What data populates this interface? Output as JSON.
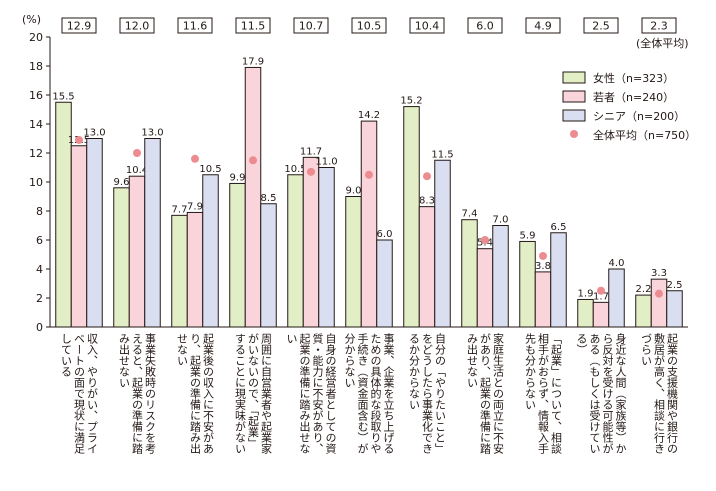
{
  "chart_data": {
    "type": "bar",
    "unit_label": "(%)",
    "avg_note": "(全体平均)",
    "ylim": [
      0,
      20
    ],
    "yticks": [
      "0",
      "2",
      "4",
      "6",
      "8",
      "10",
      "12",
      "14",
      "16",
      "18",
      "20"
    ],
    "categories": [
      "収入、やりがい、プライベートの面で現状に満足している",
      "事業失敗時のリスクを考えると、起業の準備に踏み出せない",
      "起業後の収入に不安があり、起業の準備に踏み出せない",
      "周囲に自営業者や起業家がいないので、「起業」することに現実味がない",
      "自身の経営者としての資質・能力に不安があり、起業の準備に踏み出せない",
      "事業、企業を立ち上げるための具体的な段取りや手続き（資金面含む）が分からない",
      "自分の「やりたいこと」をどうしたら事業化できるか分からない",
      "家庭生活との両立に不安があり、起業の準備に踏み出せない",
      "「起業」について、相談相手がおらず、情報入手先も分からない",
      "身近な人間（家族等）から反対を受ける可能性がある（もしくは受けている）",
      "起業の支援機関や銀行の敷居が高く、相談に行きづらい"
    ],
    "series": [
      {
        "name": "女性（n=323）",
        "color": "#e2efc6",
        "values": [
          15.5,
          9.6,
          7.7,
          9.9,
          10.5,
          9.0,
          15.2,
          7.4,
          5.9,
          1.9,
          2.2
        ],
        "labels": [
          "15.5",
          "9.6",
          "7.7",
          "9.9",
          "10.5",
          "9.0",
          "15.2",
          "7.4",
          "5.9",
          "1.9",
          "2.2"
        ]
      },
      {
        "name": "若者（n=240）",
        "color": "#f9d4db",
        "values": [
          12.5,
          10.4,
          7.9,
          17.9,
          11.7,
          14.2,
          8.3,
          5.4,
          3.8,
          1.7,
          3.3
        ],
        "labels": [
          "12.5",
          "10.4",
          "7.9",
          "17.9",
          "11.7",
          "14.2",
          "8.3",
          "5.4",
          "3.8",
          "1.7",
          "3.3"
        ]
      },
      {
        "name": "シニア（n=200）",
        "color": "#d9dff0",
        "values": [
          13.0,
          13.0,
          10.5,
          8.5,
          11.0,
          6.0,
          11.5,
          7.0,
          6.5,
          4.0,
          2.5
        ],
        "labels": [
          "13.0",
          "13.0",
          "10.5",
          "8.5",
          "11.0",
          "6.0",
          "11.5",
          "7.0",
          "6.5",
          "4.0",
          "2.5"
        ]
      }
    ],
    "average": {
      "name": "全体平均（n=750）",
      "color": "#ec8c91",
      "values": [
        12.9,
        12.0,
        11.6,
        11.5,
        10.7,
        10.5,
        10.4,
        6.0,
        4.9,
        2.5,
        2.3
      ],
      "labels": [
        "12.9",
        "12.0",
        "11.6",
        "11.5",
        "10.7",
        "10.5",
        "10.4",
        "6.0",
        "4.9",
        "2.5",
        "2.3"
      ]
    },
    "legend_position": "right",
    "grid": false
  }
}
